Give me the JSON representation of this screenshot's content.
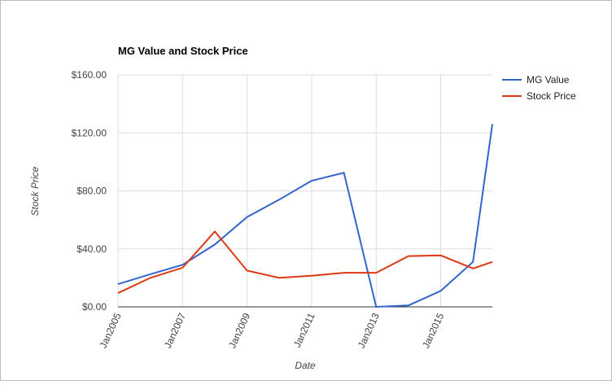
{
  "chart_data": {
    "type": "line",
    "title": "MG Value and Stock Price",
    "x_label": "Date",
    "y_label": "Stock Price",
    "x": [
      2005,
      2006,
      2007,
      2008,
      2009,
      2010,
      2011,
      2012,
      2013,
      2014,
      2015,
      2016,
      2016.6
    ],
    "series": [
      {
        "name": "MG Value",
        "color": "#3366cc",
        "values": [
          15.7,
          22.5,
          29,
          43,
          62,
          74,
          87,
          92.5,
          0,
          1,
          11,
          31,
          126
        ]
      },
      {
        "name": "Stock Price",
        "color": "#dc3912",
        "values": [
          9.5,
          20,
          27,
          52,
          25,
          20,
          21.5,
          23.5,
          23.5,
          35,
          35.5,
          26.5,
          31
        ]
      }
    ],
    "xlim": [
      2005,
      2016.6
    ],
    "xticks": [
      {
        "value": 2005,
        "label": "Jan2005"
      },
      {
        "value": 2007,
        "label": "Jan2007"
      },
      {
        "value": 2009,
        "label": "Jan2009"
      },
      {
        "value": 2011,
        "label": "Jan2011"
      },
      {
        "value": 2013,
        "label": "Jan2013"
      },
      {
        "value": 2015,
        "label": "Jan2015"
      }
    ],
    "ylim": [
      0,
      160
    ],
    "yticks": [
      {
        "value": 0,
        "label": "$0.00"
      },
      {
        "value": 40,
        "label": "$40.00"
      },
      {
        "value": 80,
        "label": "$80.00"
      },
      {
        "value": 120,
        "label": "$120.00"
      },
      {
        "value": 160,
        "label": "$160.00"
      }
    ],
    "grid": true,
    "legend": "right"
  }
}
